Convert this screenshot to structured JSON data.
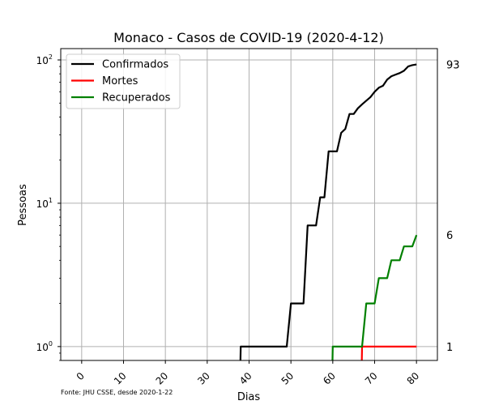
{
  "chart_data": {
    "type": "line",
    "title": "Monaco - Casos de COVID-19 (2020-4-12)",
    "xlabel": "Dias",
    "ylabel": "Pessoas",
    "yscale": "log",
    "xlim": [
      -5,
      85
    ],
    "ylim": [
      0.8,
      120
    ],
    "xticks": [
      0,
      10,
      20,
      30,
      40,
      50,
      60,
      70,
      80
    ],
    "yticks": [
      {
        "value": 1,
        "base": "10",
        "exp": "0"
      },
      {
        "value": 10,
        "base": "10",
        "exp": "1"
      },
      {
        "value": 100,
        "base": "10",
        "exp": "2"
      }
    ],
    "grid": true,
    "legend_position": "top-left",
    "source_note": "Fonte: JHU CSSE, desde 2020-1-22",
    "right_labels": [
      {
        "value": 93,
        "text": "93"
      },
      {
        "value": 6,
        "text": "6"
      },
      {
        "value": 1,
        "text": "1"
      }
    ],
    "series": [
      {
        "name": "Confirmados",
        "color": "#000000",
        "points": [
          [
            37.8,
            0.5
          ],
          [
            38,
            1
          ],
          [
            49,
            1
          ],
          [
            50,
            2
          ],
          [
            53,
            2
          ],
          [
            54,
            7
          ],
          [
            56,
            7
          ],
          [
            57,
            11
          ],
          [
            58,
            11
          ],
          [
            59,
            23
          ],
          [
            61,
            23
          ],
          [
            62,
            31
          ],
          [
            63,
            33
          ],
          [
            64,
            42
          ],
          [
            65,
            42
          ],
          [
            66,
            46
          ],
          [
            67,
            49
          ],
          [
            68,
            52
          ],
          [
            69,
            55
          ],
          [
            70,
            60
          ],
          [
            71,
            64
          ],
          [
            72,
            66
          ],
          [
            73,
            73
          ],
          [
            74,
            77
          ],
          [
            75,
            79
          ],
          [
            76,
            81
          ],
          [
            77,
            84
          ],
          [
            78,
            90
          ],
          [
            79,
            92
          ],
          [
            80,
            93
          ]
        ]
      },
      {
        "name": "Mortes",
        "color": "#ff0000",
        "points": [
          [
            66.8,
            0.5
          ],
          [
            67,
            1
          ],
          [
            80,
            1
          ]
        ]
      },
      {
        "name": "Recuperados",
        "color": "#008000",
        "points": [
          [
            59.8,
            0.5
          ],
          [
            60,
            1
          ],
          [
            67,
            1
          ],
          [
            68,
            2
          ],
          [
            70,
            2
          ],
          [
            71,
            3
          ],
          [
            73,
            3
          ],
          [
            74,
            4
          ],
          [
            76,
            4
          ],
          [
            77,
            5
          ],
          [
            79,
            5
          ],
          [
            80,
            6
          ]
        ]
      }
    ]
  }
}
